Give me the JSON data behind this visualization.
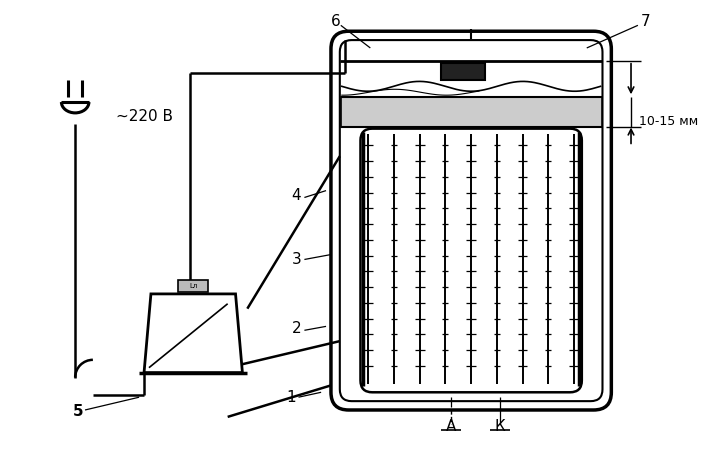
{
  "bg_color": "#ffffff",
  "line_color": "#000000",
  "figsize": [
    7.03,
    4.55
  ],
  "dpi": 100,
  "labels": {
    "voltage": "~220 В",
    "dim": "10-15 мм",
    "num1": "1",
    "num2": "2",
    "num3": "3",
    "num4": "4",
    "num5": "5",
    "num6": "6",
    "num7": "7",
    "A": "А",
    "K": "К"
  }
}
